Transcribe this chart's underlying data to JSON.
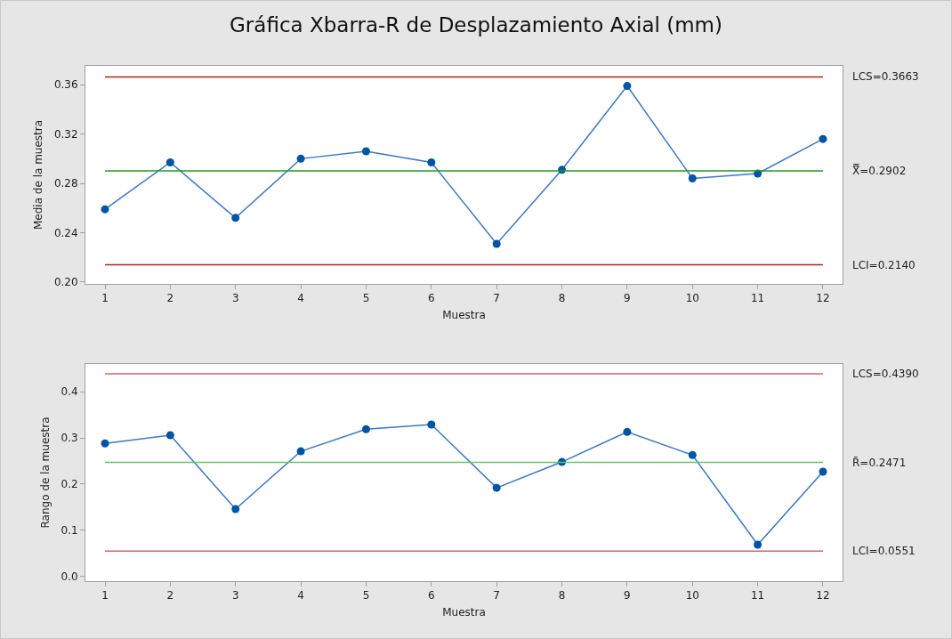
{
  "chart_data": [
    {
      "type": "line",
      "title": "Gráfica Xbarra-R de Desplazamiento Axial (mm)",
      "xlabel": "Muestra",
      "ylabel": "Media de la muestra",
      "x": [
        1,
        2,
        3,
        4,
        5,
        6,
        7,
        8,
        9,
        10,
        11,
        12
      ],
      "xlim": [
        0.7,
        12.3
      ],
      "xticks": [
        1,
        2,
        3,
        4,
        5,
        6,
        7,
        8,
        9,
        10,
        11,
        12
      ],
      "series": [
        {
          "color": "#3a78c2",
          "values": [
            0.259,
            0.297,
            0.252,
            0.3,
            0.306,
            0.297,
            0.231,
            0.291,
            0.359,
            0.284,
            0.288,
            0.316
          ]
        }
      ],
      "ylim": [
        0.1985,
        0.3753
      ],
      "yticks": [
        {
          "value": 0.2,
          "label": "0.20"
        },
        0.24,
        0.28,
        0.32,
        0.36
      ],
      "ref_lines": [
        {
          "axis": "y",
          "value": 0.3663,
          "label": "LCS=0.3663",
          "color": "#b22222"
        },
        {
          "axis": "y",
          "value": 0.2902,
          "label": "X̿=0.2902",
          "color": "#1f9a2a"
        },
        {
          "axis": "y",
          "value": 0.214,
          "label": "LCI=0.2140",
          "color": "#b22222"
        }
      ],
      "marker": "circle",
      "line_style": "solid",
      "grid": false
    },
    {
      "type": "line",
      "xlabel": "Muestra",
      "ylabel": "Rango de la muestra",
      "x": [
        1,
        2,
        3,
        4,
        5,
        6,
        7,
        8,
        9,
        10,
        11,
        12
      ],
      "xlim": [
        0.7,
        12.3
      ],
      "xticks": [
        1,
        2,
        3,
        4,
        5,
        6,
        7,
        8,
        9,
        10,
        11,
        12
      ],
      "series": [
        {
          "color": "#3a78c2",
          "values": [
            0.288,
            0.306,
            0.146,
            0.271,
            0.319,
            0.329,
            0.192,
            0.248,
            0.313,
            0.263,
            0.069,
            0.227
          ]
        }
      ],
      "ylim": [
        -0.01,
        0.46
      ],
      "yticks": [
        {
          "value": 0,
          "label": "0.0"
        },
        0.1,
        0.2,
        0.3,
        0.4
      ],
      "ref_lines": [
        {
          "axis": "y",
          "value": 0.439,
          "label": "LCS=0.4390",
          "color": "#c96a6a"
        },
        {
          "axis": "y",
          "value": 0.2471,
          "label": "R̄=0.2471",
          "color": "#6cbf6c"
        },
        {
          "axis": "y",
          "value": 0.0551,
          "label": "LCI=0.0551",
          "color": "#c96a6a"
        }
      ],
      "marker": "circle",
      "line_style": "solid",
      "grid": false
    }
  ]
}
